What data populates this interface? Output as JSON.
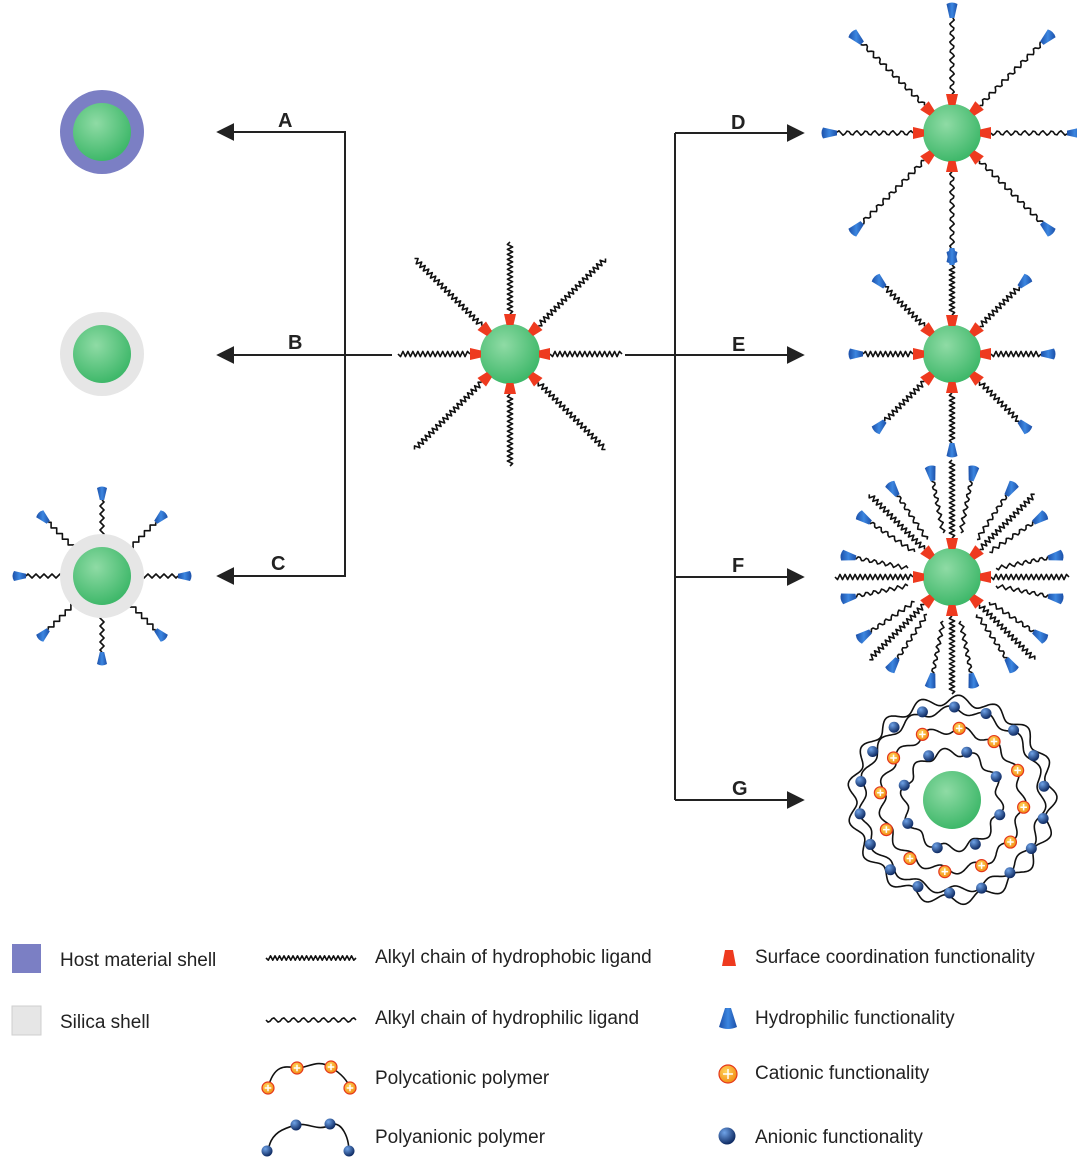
{
  "colors": {
    "core": "#3fb86a",
    "core_light": "#8fdba5",
    "host_shell": "#7b7fc4",
    "silica_shell": "#e6e6e6",
    "coordination": "#ee3a1f",
    "hydrophilic": "#2466c2",
    "cationic_fill": "#f6b21a",
    "cationic_edge": "#e5371b",
    "anionic": "#1a3a7a",
    "line": "#222222"
  },
  "routes": {
    "A": "A",
    "B": "B",
    "C": "C",
    "D": "D",
    "E": "E",
    "F": "F",
    "G": "G"
  },
  "legend": {
    "host_shell": "Host material shell",
    "silica_shell": "Silica shell",
    "hydrophobic_chain": "Alkyl chain of hydrophobic ligand",
    "hydrophilic_chain": "Alkyl chain of hydrophilic ligand",
    "polycationic": "Polycationic polymer",
    "polyanionic": "Polyanionic polymer",
    "coordination": "Surface coordination functionality",
    "hydrophilic": "Hydrophilic functionality",
    "cationic": "Cationic functionality",
    "anionic": "Anionic functionality"
  },
  "icons": {
    "core": "green-nanoparticle-core-icon",
    "coordination": "orange-trapezoid-icon",
    "hydrophilic": "blue-bell-icon",
    "cationic": "orange-plus-bead-icon",
    "anionic": "blue-sphere-icon"
  }
}
